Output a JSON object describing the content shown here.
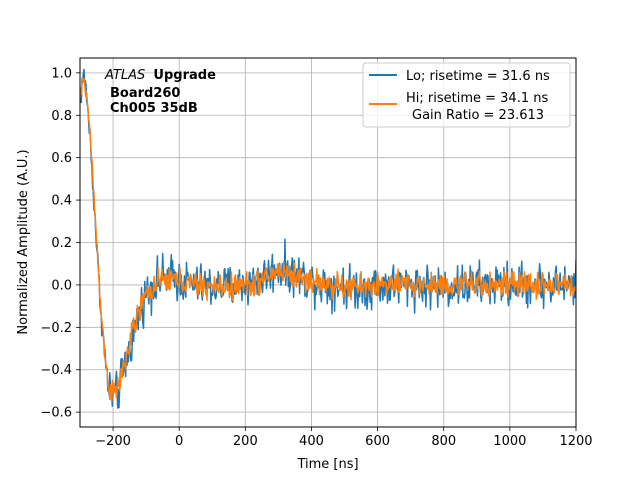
{
  "chart_data": {
    "type": "line",
    "title": "",
    "xlabel": "Time [ns]",
    "ylabel": "Normalized Amplitude (A.U.)",
    "xlim": [
      -300,
      1200
    ],
    "ylim": [
      -0.67,
      1.07
    ],
    "xticks": [
      -200,
      0,
      200,
      400,
      600,
      800,
      1000,
      1200
    ],
    "yticks": [
      -0.6,
      -0.4,
      -0.2,
      0.0,
      0.2,
      0.4,
      0.6,
      0.8,
      1.0
    ],
    "xtick_labels": [
      "−200",
      "0",
      "200",
      "400",
      "600",
      "800",
      "1000",
      "1200"
    ],
    "ytick_labels": [
      "−0.6",
      "−0.4",
      "−0.2",
      "0.0",
      "0.2",
      "0.4",
      "0.6",
      "0.8",
      "1.0"
    ],
    "grid": true,
    "legend_position": "top-right",
    "annotation": {
      "atlas": "ATLAS",
      "line1_rest": "Upgrade",
      "line2": "Board260",
      "line3": "Ch005 35dB"
    },
    "legend": {
      "entries": [
        "Lo; risetime = 31.6 ns",
        "Hi; risetime = 34.1 ns"
      ],
      "extra_line": "Gain Ratio = 23.613"
    },
    "series": [
      {
        "name": "Lo; risetime = 31.6 ns",
        "color": "#1f77b4",
        "noise": 0.05,
        "x": [
          -300,
          -290,
          -280,
          -270,
          -260,
          -250,
          -240,
          -230,
          -220,
          -210,
          -200,
          -190,
          -180,
          -170,
          -160,
          -150,
          -140,
          -130,
          -120,
          -110,
          -100,
          -90,
          -80,
          -70,
          -60,
          -50,
          -40,
          -30,
          -20,
          -10,
          0,
          50,
          100,
          150,
          200,
          250,
          280,
          300,
          320,
          350,
          400,
          450,
          500,
          550,
          600,
          700,
          800,
          900,
          1000,
          1100,
          1200
        ],
        "y": [
          0.85,
          1.0,
          0.9,
          0.7,
          0.45,
          0.2,
          -0.05,
          -0.25,
          -0.42,
          -0.5,
          -0.53,
          -0.52,
          -0.48,
          -0.42,
          -0.36,
          -0.3,
          -0.24,
          -0.18,
          -0.13,
          -0.08,
          -0.04,
          -0.02,
          0.0,
          0.01,
          0.02,
          0.03,
          0.04,
          0.04,
          0.04,
          0.03,
          0.02,
          0.0,
          -0.01,
          -0.01,
          0.0,
          0.03,
          0.06,
          0.08,
          0.07,
          0.05,
          0.02,
          0.0,
          -0.01,
          -0.01,
          0.0,
          0.0,
          -0.01,
          0.0,
          0.0,
          0.0,
          0.0
        ]
      },
      {
        "name": "Hi; risetime = 34.1 ns",
        "color": "#ff7f0e",
        "noise": 0.03,
        "x": [
          -300,
          -290,
          -280,
          -270,
          -260,
          -250,
          -240,
          -230,
          -220,
          -210,
          -200,
          -190,
          -180,
          -170,
          -160,
          -150,
          -140,
          -130,
          -120,
          -110,
          -100,
          -90,
          -80,
          -70,
          -60,
          -50,
          -40,
          -30,
          -20,
          -10,
          0,
          50,
          100,
          150,
          200,
          250,
          280,
          300,
          320,
          350,
          400,
          450,
          500,
          550,
          600,
          700,
          800,
          900,
          1000,
          1100,
          1200
        ],
        "y": [
          0.88,
          0.98,
          0.9,
          0.72,
          0.48,
          0.22,
          -0.03,
          -0.24,
          -0.4,
          -0.49,
          -0.52,
          -0.5,
          -0.46,
          -0.4,
          -0.34,
          -0.28,
          -0.22,
          -0.17,
          -0.12,
          -0.08,
          -0.05,
          -0.03,
          -0.01,
          0.0,
          0.01,
          0.02,
          0.02,
          0.03,
          0.03,
          0.02,
          0.02,
          0.0,
          -0.01,
          -0.01,
          0.0,
          0.02,
          0.05,
          0.07,
          0.06,
          0.04,
          0.02,
          0.0,
          -0.01,
          -0.01,
          0.0,
          0.0,
          0.0,
          0.0,
          0.0,
          0.0,
          0.0
        ]
      }
    ]
  }
}
